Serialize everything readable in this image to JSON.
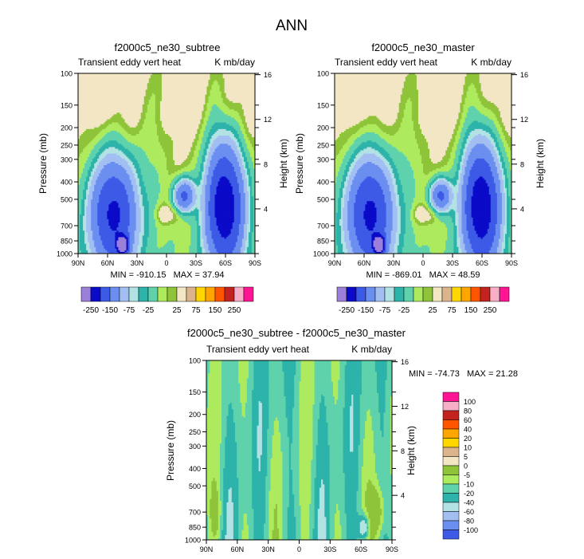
{
  "figure_title": "ANN",
  "colors": {
    "main": [
      "#9b7fd8",
      "#0a0ac8",
      "#3c5ae6",
      "#6b8ff0",
      "#a3bff2",
      "#b2e2e4",
      "#2db3aa",
      "#5fd2ac",
      "#aeea5e",
      "#8fc43a",
      "#f2e6c4",
      "#dcb48c",
      "#ffd700",
      "#ffa500",
      "#ff5500",
      "#c3231e",
      "#f7afc8",
      "#ff1493"
    ],
    "diff": [
      "#9b7fd8",
      "#0a0ac8",
      "#3c5ae6",
      "#6b8ff0",
      "#a3bff2",
      "#b2e2e4",
      "#2db3aa",
      "#5fd2ac",
      "#aeea5e",
      "#8fc43a",
      "#f2e6c4",
      "#dcb48c",
      "#ffd700",
      "#ffa500",
      "#ff5500",
      "#c3231e",
      "#f7afc8",
      "#ff1493"
    ]
  },
  "chart_data": [
    {
      "type": "contour",
      "title": "f2000c5_ne30_subtree",
      "subtitle_left": "Transient eddy vert heat",
      "subtitle_right": "K mb/day",
      "ylabel": "Pressure (mb)",
      "ylabel_right": "Height (km)",
      "x_ticks": [
        "90N",
        "60N",
        "30N",
        "0",
        "30S",
        "60S",
        "90S"
      ],
      "y_ticks": [
        "100",
        "150",
        "200",
        "250",
        "300",
        "400",
        "500",
        "700",
        "850",
        "1000"
      ],
      "y_right_ticks": [
        "16",
        "12",
        "8",
        "4"
      ],
      "min_max": "MIN = -910.15   MAX = 37.94",
      "levels": [
        "-250",
        "-150",
        "-75",
        "-25",
        "25",
        "75",
        "150",
        "250"
      ],
      "scale": "main"
    },
    {
      "type": "contour",
      "title": "f2000c5_ne30_master",
      "subtitle_left": "Transient eddy vert heat",
      "subtitle_right": "K mb/day",
      "ylabel": "Pressure (mb)",
      "ylabel_right": "Height (km)",
      "x_ticks": [
        "90N",
        "60N",
        "30N",
        "0",
        "30S",
        "60S",
        "90S"
      ],
      "y_ticks": [
        "100",
        "150",
        "200",
        "250",
        "300",
        "400",
        "500",
        "700",
        "850",
        "1000"
      ],
      "y_right_ticks": [
        "16",
        "12",
        "8",
        "4"
      ],
      "min_max": "MIN = -869.01   MAX = 48.59",
      "levels": [
        "-250",
        "-150",
        "-75",
        "-25",
        "25",
        "75",
        "150",
        "250"
      ],
      "scale": "main"
    },
    {
      "type": "contour",
      "title": "f2000c5_ne30_subtree - f2000c5_ne30_master",
      "subtitle_left": "Transient eddy vert heat",
      "subtitle_right": "K mb/day",
      "ylabel": "Pressure (mb)",
      "ylabel_right": "Height (km)",
      "x_ticks": [
        "90N",
        "60N",
        "30N",
        "0",
        "30S",
        "60S",
        "90S"
      ],
      "y_ticks": [
        "100",
        "150",
        "200",
        "250",
        "300",
        "400",
        "500",
        "700",
        "850",
        "1000"
      ],
      "y_right_ticks": [
        "16",
        "12",
        "8",
        "4"
      ],
      "min_max": "MIN = -74.73   MAX = 21.28",
      "levels": [
        "100",
        "80",
        "60",
        "40",
        "20",
        "10",
        "5",
        "0",
        "-5",
        "-10",
        "-20",
        "-40",
        "-60",
        "-80",
        "-100"
      ],
      "scale": "diff"
    }
  ]
}
